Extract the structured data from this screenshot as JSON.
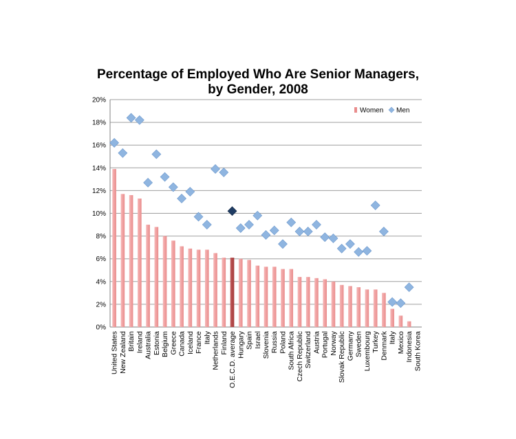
{
  "chart_data": {
    "type": "bar",
    "title_line1": "Percentage of Employed Who Are Senior Managers,",
    "title_line2": "by Gender, 2008",
    "xlabel": "",
    "ylabel": "",
    "ylim": [
      0,
      20
    ],
    "y_ticks": [
      "0%",
      "2%",
      "4%",
      "6%",
      "8%",
      "10%",
      "12%",
      "14%",
      "16%",
      "18%",
      "20%"
    ],
    "grid": true,
    "legend_position": "top-right",
    "highlight_category": "O.E.C.D. average",
    "colors": {
      "women_bar": "#e98c8c",
      "women_bar_highlight": "#a53a3a",
      "men_marker": "#8fb5e0",
      "men_marker_highlight": "#1f3c63",
      "grid": "#9e9e9e"
    },
    "categories": [
      "United States",
      "New Zealand",
      "Britain",
      "Ireland",
      "Australia",
      "Estonia",
      "Belgium",
      "Greece",
      "Canada",
      "Iceland",
      "France",
      "Italy",
      "Netherlands",
      "Finland",
      "O.E.C.D. average",
      "Hungary",
      "Spain",
      "Israel",
      "Slovenia",
      "Russia",
      "Poland",
      "South Africa",
      "Czech Republic",
      "Switzerland",
      "Austria",
      "Portugal",
      "Norway",
      "Slovak Republic",
      "Germany",
      "Sweden",
      "Luxembourg",
      "Turkey",
      "Denmark",
      "Italy",
      "Mexico",
      "Indonesia",
      "South Korea"
    ],
    "series": [
      {
        "name": "Women",
        "kind": "bar",
        "values": [
          13.9,
          11.7,
          11.6,
          11.3,
          9.0,
          8.8,
          8.0,
          7.6,
          7.1,
          6.9,
          6.8,
          6.8,
          6.5,
          6.1,
          6.1,
          6.0,
          5.9,
          5.4,
          5.3,
          5.3,
          5.1,
          5.1,
          4.4,
          4.4,
          4.3,
          4.2,
          4.0,
          3.7,
          3.6,
          3.5,
          3.3,
          3.3,
          3.0,
          1.6,
          1.0,
          0.5,
          0.0
        ]
      },
      {
        "name": "Men",
        "kind": "marker",
        "values": [
          16.2,
          15.3,
          18.4,
          18.2,
          12.7,
          15.2,
          13.2,
          12.3,
          11.3,
          11.9,
          9.7,
          9.0,
          13.9,
          13.6,
          10.2,
          8.7,
          9.0,
          9.8,
          8.1,
          8.5,
          7.3,
          9.2,
          8.4,
          8.4,
          9.0,
          7.9,
          7.8,
          6.9,
          7.3,
          6.6,
          6.7,
          10.7,
          8.4,
          2.2,
          2.1,
          3.5,
          null
        ]
      }
    ]
  }
}
